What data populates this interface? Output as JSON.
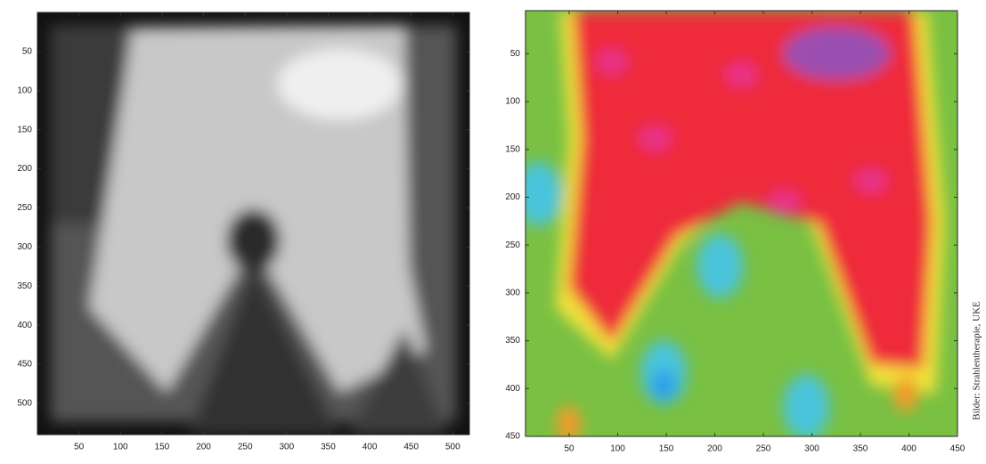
{
  "chart_data": [
    {
      "type": "heatmap",
      "colormap": "gray",
      "xlim": [
        0,
        520
      ],
      "ylim": [
        0,
        540
      ],
      "xticks": [
        50,
        100,
        150,
        200,
        250,
        300,
        350,
        400,
        450,
        500
      ],
      "yticks": [
        50,
        100,
        150,
        200,
        250,
        300,
        350,
        400,
        450,
        500
      ]
    },
    {
      "type": "heatmap",
      "colormap": "rainbow",
      "xlim": [
        5,
        450
      ],
      "ylim": [
        5,
        450
      ],
      "xticks": [
        50,
        100,
        150,
        200,
        250,
        300,
        350,
        400,
        450
      ],
      "yticks": [
        50,
        100,
        150,
        200,
        250,
        300,
        350,
        400,
        450
      ]
    }
  ],
  "credit": "Bilder: Strahlentherapie, UKE"
}
